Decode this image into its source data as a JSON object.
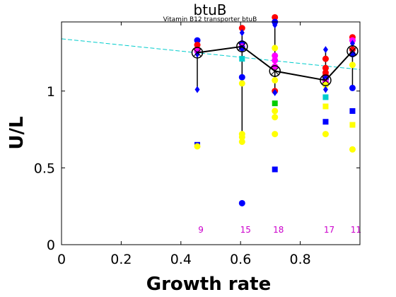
{
  "chart_data": {
    "type": "scatter",
    "title": "btuB",
    "subtitle": "Vitamin B12 transporter btuB",
    "xlabel": "Growth rate",
    "ylabel": "U/L",
    "xlim": [
      0,
      1.0
    ],
    "ylim": [
      0,
      1.45
    ],
    "x_ticks": [
      0,
      0.2,
      0.4,
      0.6,
      0.8
    ],
    "y_ticks": [
      0,
      0.5,
      1
    ],
    "x_tick_labels": [
      "0",
      "0.2",
      "0.4",
      "0.6",
      "0.8"
    ],
    "y_tick_labels": [
      "0",
      "0.5",
      "1"
    ],
    "grid": false,
    "trend_line": {
      "color": "#00cccc",
      "style": "dashed",
      "from": [
        0,
        1.34
      ],
      "to": [
        1.0,
        1.14
      ]
    },
    "groups": [
      {
        "x": 0.455,
        "mean": 1.25,
        "min": 1.01,
        "max": 1.33,
        "count": "9",
        "points": [
          {
            "y": 1.33,
            "color": "#0000ff",
            "shape": "circle"
          },
          {
            "y": 1.3,
            "color": "#ff0000",
            "shape": "circle"
          },
          {
            "y": 1.27,
            "color": "#ff0000",
            "shape": "circle"
          },
          {
            "y": 1.26,
            "color": "#ff00ff",
            "shape": "circle"
          },
          {
            "y": 1.24,
            "color": "#0000ff",
            "shape": "diamond"
          },
          {
            "y": 1.01,
            "color": "#0000ff",
            "shape": "diamond"
          },
          {
            "y": 0.65,
            "color": "#0000ff",
            "shape": "square"
          },
          {
            "y": 0.64,
            "color": "#ffff00",
            "shape": "circle"
          }
        ]
      },
      {
        "x": 0.605,
        "mean": 1.29,
        "min": 0.72,
        "max": 1.41,
        "count": "15",
        "points": [
          {
            "y": 1.41,
            "color": "#ff0000",
            "shape": "circle"
          },
          {
            "y": 1.38,
            "color": "#0000ff",
            "shape": "diamond"
          },
          {
            "y": 1.31,
            "color": "#0000ff",
            "shape": "circle"
          },
          {
            "y": 1.29,
            "color": "#ff00ff",
            "shape": "circle"
          },
          {
            "y": 1.28,
            "color": "#0000ff",
            "shape": "circle"
          },
          {
            "y": 1.21,
            "color": "#00cccc",
            "shape": "square"
          },
          {
            "y": 1.09,
            "color": "#0000ff",
            "shape": "circle"
          },
          {
            "y": 1.05,
            "color": "#ffff00",
            "shape": "circle"
          },
          {
            "y": 0.72,
            "color": "#ffff00",
            "shape": "circle"
          },
          {
            "y": 0.7,
            "color": "#ffff00",
            "shape": "circle"
          },
          {
            "y": 0.67,
            "color": "#ffff00",
            "shape": "circle"
          },
          {
            "y": 0.27,
            "color": "#0000ff",
            "shape": "circle"
          }
        ]
      },
      {
        "x": 0.715,
        "mean": 1.13,
        "min": 1.0,
        "max": 1.48,
        "count": "18",
        "points": [
          {
            "y": 1.48,
            "color": "#ff0000",
            "shape": "circle"
          },
          {
            "y": 1.45,
            "color": "#0000ff",
            "shape": "circle"
          },
          {
            "y": 1.43,
            "color": "#0000ff",
            "shape": "diamond"
          },
          {
            "y": 1.28,
            "color": "#ffff00",
            "shape": "circle"
          },
          {
            "y": 1.23,
            "color": "#ff00ff",
            "shape": "circle"
          },
          {
            "y": 1.2,
            "color": "#ff00ff",
            "shape": "circle"
          },
          {
            "y": 1.16,
            "color": "#ff00ff",
            "shape": "circle"
          },
          {
            "y": 1.07,
            "color": "#ffff00",
            "shape": "circle"
          },
          {
            "y": 1.0,
            "color": "#ff0000",
            "shape": "circle"
          },
          {
            "y": 0.99,
            "color": "#0000ff",
            "shape": "diamond"
          },
          {
            "y": 0.92,
            "color": "#00cc00",
            "shape": "square"
          },
          {
            "y": 0.87,
            "color": "#ffff00",
            "shape": "circle"
          },
          {
            "y": 0.83,
            "color": "#ffff00",
            "shape": "circle"
          },
          {
            "y": 0.72,
            "color": "#ffff00",
            "shape": "circle"
          },
          {
            "y": 0.49,
            "color": "#0000ff",
            "shape": "square"
          }
        ]
      },
      {
        "x": 0.885,
        "mean": 1.07,
        "min": 1.0,
        "max": 1.27,
        "count": "17",
        "points": [
          {
            "y": 1.27,
            "color": "#0000ff",
            "shape": "diamond"
          },
          {
            "y": 1.21,
            "color": "#ff0000",
            "shape": "circle"
          },
          {
            "y": 1.15,
            "color": "#ff0000",
            "shape": "circle"
          },
          {
            "y": 1.12,
            "color": "#ff0000",
            "shape": "circle"
          },
          {
            "y": 1.1,
            "color": "#ff0000",
            "shape": "circle"
          },
          {
            "y": 1.08,
            "color": "#0000ff",
            "shape": "circle"
          },
          {
            "y": 1.06,
            "color": "#ff00ff",
            "shape": "circle"
          },
          {
            "y": 1.04,
            "color": "#ffff00",
            "shape": "circle"
          },
          {
            "y": 1.01,
            "color": "#0000ff",
            "shape": "diamond"
          },
          {
            "y": 0.96,
            "color": "#00cccc",
            "shape": "square"
          },
          {
            "y": 0.9,
            "color": "#ffff00",
            "shape": "square"
          },
          {
            "y": 0.8,
            "color": "#0000ff",
            "shape": "square"
          },
          {
            "y": 0.72,
            "color": "#ffff00",
            "shape": "circle"
          }
        ]
      },
      {
        "x": 0.975,
        "mean": 1.26,
        "min": 1.02,
        "max": 1.35,
        "count": "11",
        "points": [
          {
            "y": 1.35,
            "color": "#ff0000",
            "shape": "circle"
          },
          {
            "y": 1.33,
            "color": "#ff00ff",
            "shape": "circle"
          },
          {
            "y": 1.31,
            "color": "#0000ff",
            "shape": "diamond"
          },
          {
            "y": 1.27,
            "color": "#ff0000",
            "shape": "circle"
          },
          {
            "y": 1.24,
            "color": "#0000ff",
            "shape": "circle"
          },
          {
            "y": 1.17,
            "color": "#ffff00",
            "shape": "circle"
          },
          {
            "y": 1.02,
            "color": "#0000ff",
            "shape": "circle"
          },
          {
            "y": 0.87,
            "color": "#0000ff",
            "shape": "square"
          },
          {
            "y": 0.78,
            "color": "#ffff00",
            "shape": "square"
          },
          {
            "y": 0.62,
            "color": "#ffff00",
            "shape": "circle"
          }
        ]
      }
    ]
  }
}
